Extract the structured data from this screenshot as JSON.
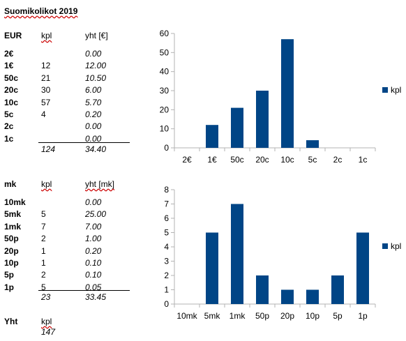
{
  "sheet_title": "Suomikolikot 2019",
  "eur": {
    "label": "EUR",
    "col_count": "kpl",
    "col_total": "yht [€]",
    "rows": [
      {
        "name": "2€",
        "count": "",
        "total": "0.00"
      },
      {
        "name": "1€",
        "count": "12",
        "total": "12.00"
      },
      {
        "name": "50c",
        "count": "21",
        "total": "10.50"
      },
      {
        "name": "20c",
        "count": "30",
        "total": "6.00"
      },
      {
        "name": "10c",
        "count": "57",
        "total": "5.70"
      },
      {
        "name": "5c",
        "count": "4",
        "total": "0.20"
      },
      {
        "name": "2c",
        "count": "",
        "total": "0.00"
      },
      {
        "name": "1c",
        "count": "",
        "total": "0.00"
      }
    ],
    "sum_count": "124",
    "sum_total": "34.40"
  },
  "mk": {
    "label": "mk",
    "col_count": "kpl",
    "col_total": "yht [mk]",
    "rows": [
      {
        "name": "10mk",
        "count": "",
        "total": "0.00"
      },
      {
        "name": "5mk",
        "count": "5",
        "total": "25.00"
      },
      {
        "name": "1mk",
        "count": "7",
        "total": "7.00"
      },
      {
        "name": "50p",
        "count": "2",
        "total": "1.00"
      },
      {
        "name": "20p",
        "count": "1",
        "total": "0.20"
      },
      {
        "name": "10p",
        "count": "1",
        "total": "0.10"
      },
      {
        "name": "5p",
        "count": "2",
        "total": "0.10"
      },
      {
        "name": "1p",
        "count": "5",
        "total": "0.05"
      }
    ],
    "sum_count": "23",
    "sum_total": "33.45"
  },
  "yht": {
    "label": "Yht",
    "col_count": "kpl",
    "value": "147"
  },
  "chart_data": [
    {
      "type": "bar",
      "categories": [
        "2€",
        "1€",
        "50c",
        "20c",
        "10c",
        "5c",
        "2c",
        "1c"
      ],
      "series": [
        {
          "name": "kpl",
          "values": [
            0,
            12,
            21,
            30,
            57,
            4,
            0,
            0
          ]
        }
      ],
      "ylim": [
        0,
        60
      ],
      "yticks": [
        0,
        10,
        20,
        30,
        40,
        50,
        60
      ],
      "legend": "right",
      "grid": false,
      "bar_color": "#004586"
    },
    {
      "type": "bar",
      "categories": [
        "10mk",
        "5mk",
        "1mk",
        "50p",
        "20p",
        "10p",
        "5p",
        "1p"
      ],
      "series": [
        {
          "name": "kpl",
          "values": [
            0,
            5,
            7,
            2,
            1,
            1,
            2,
            5
          ]
        }
      ],
      "ylim": [
        0,
        8
      ],
      "yticks": [
        0,
        1,
        2,
        3,
        4,
        5,
        6,
        7,
        8
      ],
      "legend": "right",
      "grid": false,
      "bar_color": "#004586"
    }
  ]
}
